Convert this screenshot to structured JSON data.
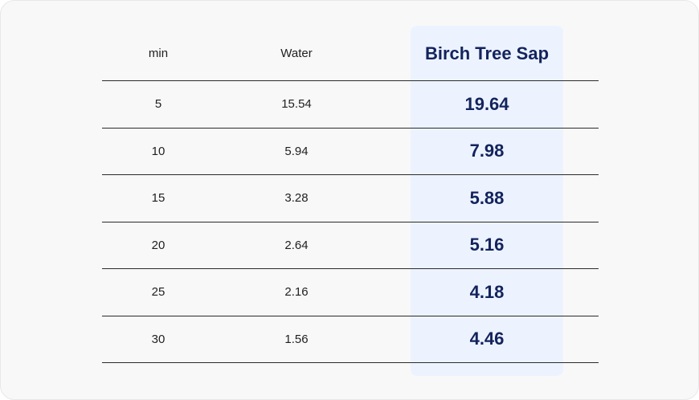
{
  "table": {
    "headers": [
      "min",
      "Water",
      "Birch Tree Sap"
    ],
    "rows": [
      {
        "min": "5",
        "water": "15.54",
        "birch": "19.64"
      },
      {
        "min": "10",
        "water": "5.94",
        "birch": "7.98"
      },
      {
        "min": "15",
        "water": "3.28",
        "birch": "5.88"
      },
      {
        "min": "20",
        "water": "2.64",
        "birch": "5.16"
      },
      {
        "min": "25",
        "water": "2.16",
        "birch": "4.18"
      },
      {
        "min": "30",
        "water": "1.56",
        "birch": "4.46"
      }
    ]
  },
  "colors": {
    "highlight_bg": "#ecf3ff",
    "highlight_text": "#13235c",
    "rule": "#2b2b2b"
  }
}
